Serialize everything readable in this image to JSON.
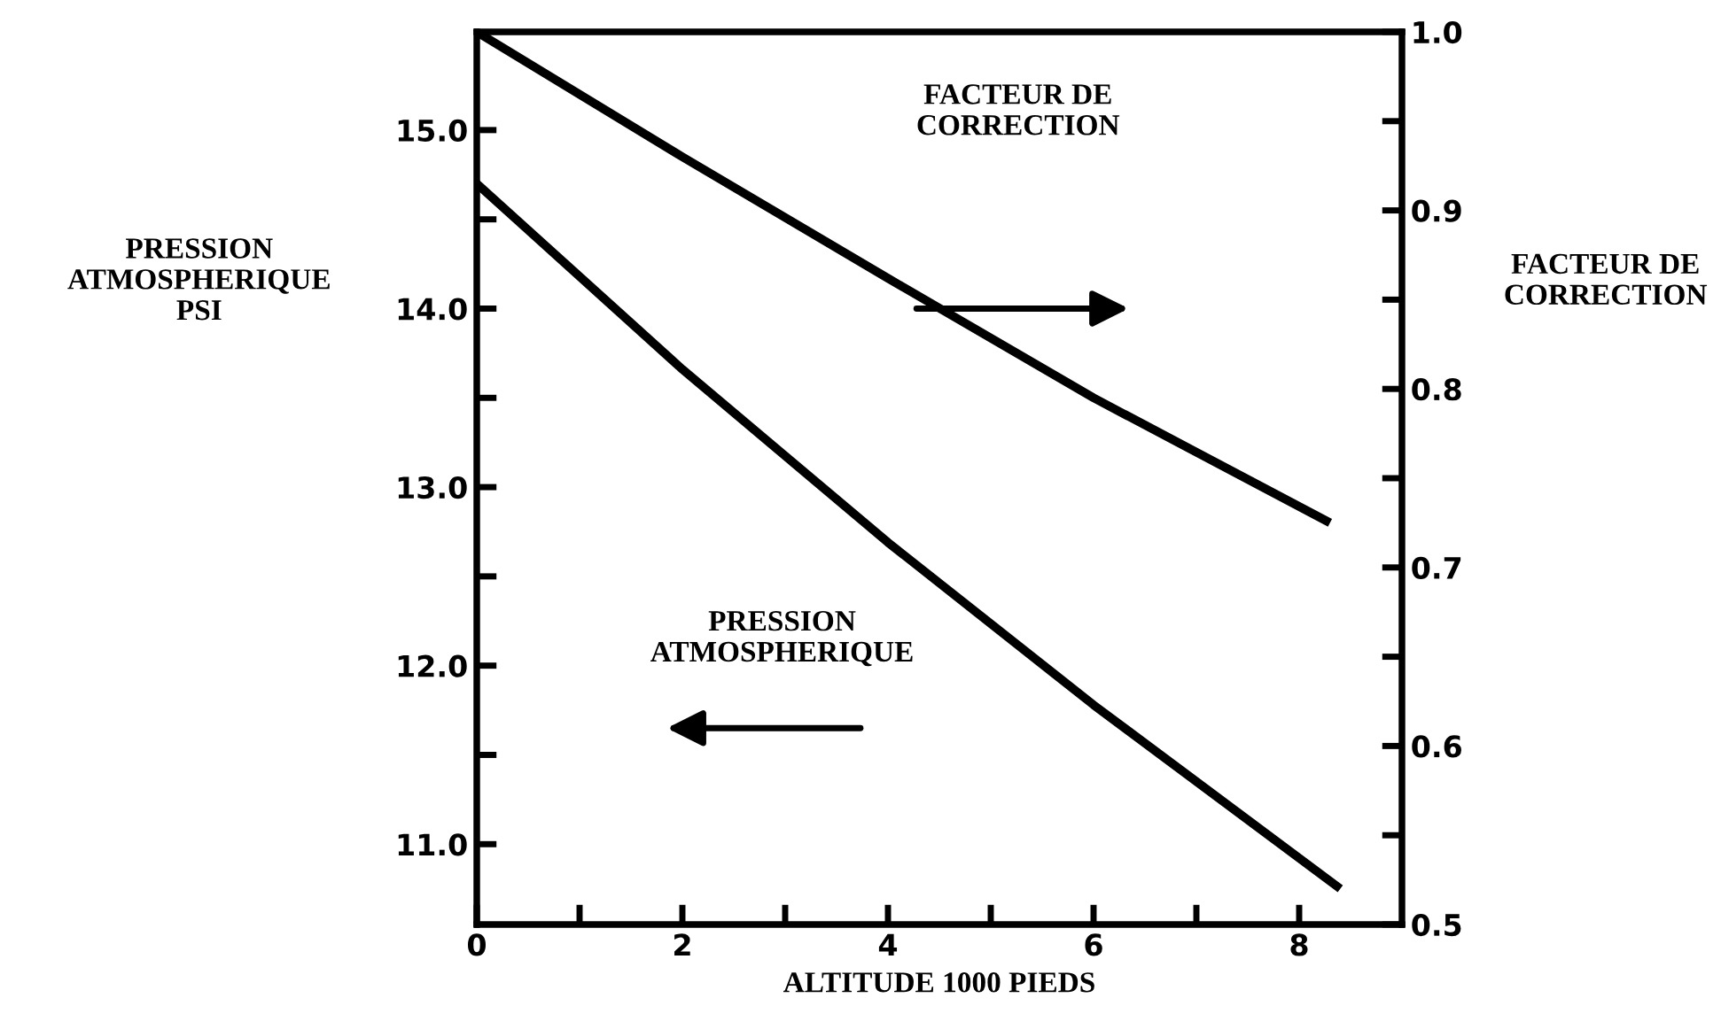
{
  "chart_data": {
    "type": "line",
    "xlabel": "ALTITUDE 1000 PIEDS",
    "ylabel": "PRESSION\nATMOSPHERIQUE\nPSI",
    "y2label": "FACTEUR DE\nCORRECTION",
    "series": [
      {
        "color": "#000000",
        "x": [
          0,
          2,
          4,
          6,
          8.4
        ],
        "values": [
          14.7,
          13.66,
          12.69,
          11.78,
          10.75
        ]
      },
      {
        "color": "#000000",
        "axis": "y2",
        "x": [
          0,
          2,
          4,
          6,
          8.3
        ],
        "values": [
          1.0,
          0.93,
          0.862,
          0.795,
          0.725
        ]
      }
    ],
    "annotations": [
      "FACTEUR DE\nCORRECTION",
      "PRESSION\nATMOSPHERIQUE"
    ],
    "xlim": [
      0,
      9.0
    ],
    "xticks": [
      0,
      {
        "value": 1,
        "label": null
      },
      2,
      {
        "value": 3,
        "label": null
      },
      4,
      {
        "value": 5,
        "label": null
      },
      6,
      {
        "value": 7,
        "label": null
      },
      8
    ],
    "ylim": [
      10.55,
      15.55
    ],
    "yticks": [
      {
        "value": 11,
        "label": "11.0"
      },
      {
        "value": 11.5,
        "label": null
      },
      {
        "value": 12,
        "label": "12.0"
      },
      {
        "value": 12.5,
        "label": null
      },
      {
        "value": 13,
        "label": "13.0"
      },
      {
        "value": 13.5,
        "label": null
      },
      {
        "value": 14,
        "label": "14.0"
      },
      {
        "value": 14.5,
        "label": null
      },
      {
        "value": 15,
        "label": "15.0"
      }
    ],
    "y2lim": [
      0.5,
      1.0
    ],
    "y2ticks": [
      0.5,
      {
        "value": 0.55,
        "label": null
      },
      0.6,
      {
        "value": 0.65,
        "label": null
      },
      0.7,
      {
        "value": 0.75,
        "label": null
      },
      0.8,
      {
        "value": 0.85,
        "label": null
      },
      0.9,
      {
        "value": 0.95,
        "label": null
      },
      {
        "value": 1,
        "label": "1.0"
      }
    ],
    "grid": false,
    "legend": false,
    "marker": "none",
    "line_style": "solid"
  }
}
